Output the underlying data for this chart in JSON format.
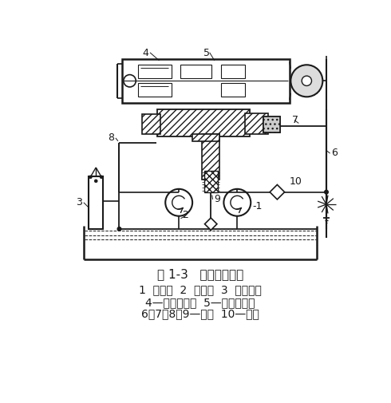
{
  "title_line1": "图 1-3   改装后的油路",
  "title_line2": "1  供油泵  2  回油泵  3  水銀开关",
  "title_line3": "4—磨头电动机  5—磨头轴承腔",
  "title_line4": "6、7、8、9—管道  10—阀体",
  "bg_color": "#ffffff",
  "lc": "#1a1a1a",
  "title_fontsize": 11,
  "label_fontsize": 10
}
